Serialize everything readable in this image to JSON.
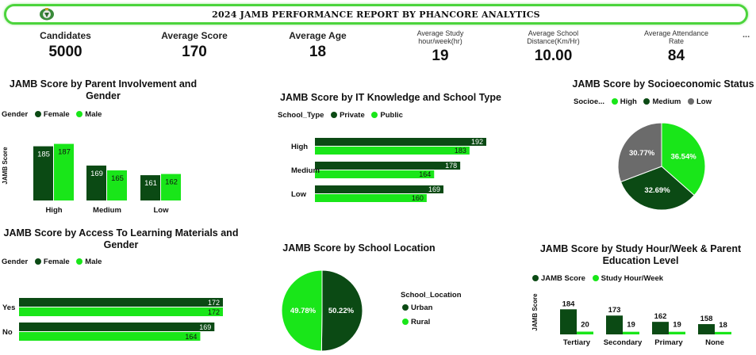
{
  "header": {
    "title": "2024 JAMB PERFORMANCE REPORT BY PHANCORE ANALYTICS"
  },
  "colors": {
    "dark": "#0b4a14",
    "light": "#19e619",
    "grey": "#6b6b6b",
    "accent": "#4cd43c"
  },
  "kpis": [
    {
      "label": "Candidates",
      "value": "5000"
    },
    {
      "label": "Average Score",
      "value": "170"
    },
    {
      "label": "Average Age",
      "value": "18"
    },
    {
      "label": "Average Study hour/week(hr)",
      "value": "19"
    },
    {
      "label": "Average School Distance(Km/Hr)",
      "value": "10.00"
    },
    {
      "label": "Average Attendance Rate",
      "value": "84"
    }
  ],
  "more_label": "...",
  "chart_data": [
    {
      "id": "parent",
      "type": "bar",
      "title": "JAMB Score by Parent Involvement and Gender",
      "legend_title": "Gender",
      "ylabel": "JAMB Score",
      "categories": [
        "High",
        "Medium",
        "Low"
      ],
      "series": [
        {
          "name": "Female",
          "values": [
            185,
            169,
            161
          ]
        },
        {
          "name": "Male",
          "values": [
            187,
            165,
            162
          ]
        }
      ]
    },
    {
      "id": "it",
      "type": "bar",
      "orientation": "horizontal",
      "title": "JAMB Score by IT Knowledge and School Type",
      "legend_title": "School_Type",
      "categories": [
        "High",
        "Medium",
        "Low"
      ],
      "series": [
        {
          "name": "Private",
          "values": [
            192,
            178,
            169
          ]
        },
        {
          "name": "Public",
          "values": [
            183,
            164,
            160
          ]
        }
      ]
    },
    {
      "id": "socio",
      "type": "pie",
      "title": "JAMB Score by Socioeconomic Status",
      "legend_title": "Socioe...",
      "slices": [
        {
          "name": "High",
          "label": "36.54%",
          "value": 36.54
        },
        {
          "name": "Medium",
          "label": "32.69%",
          "value": 32.69
        },
        {
          "name": "Low",
          "label": "30.77%",
          "value": 30.77
        }
      ]
    },
    {
      "id": "access",
      "type": "bar",
      "orientation": "horizontal",
      "title": "JAMB Score by Access To Learning Materials and Gender",
      "legend_title": "Gender",
      "categories": [
        "Yes",
        "No"
      ],
      "series": [
        {
          "name": "Female",
          "values": [
            172,
            169
          ]
        },
        {
          "name": "Male",
          "values": [
            172,
            164
          ]
        }
      ]
    },
    {
      "id": "location",
      "type": "pie",
      "title": "JAMB Score by School Location",
      "legend_title": "School_Location",
      "slices": [
        {
          "name": "Urban",
          "label": "50.22%",
          "value": 50.22
        },
        {
          "name": "Rural",
          "label": "49.78%",
          "value": 49.78
        }
      ]
    },
    {
      "id": "study",
      "type": "bar",
      "title": "JAMB Score by Study Hour/Week & Parent Education Level",
      "ylabel": "JAMB Score",
      "categories": [
        "Tertiary",
        "Secondary",
        "Primary",
        "None"
      ],
      "series": [
        {
          "name": "JAMB Score",
          "values": [
            184,
            173,
            162,
            158
          ]
        },
        {
          "name": "Study Hour/Week",
          "values": [
            20,
            19,
            19,
            18
          ]
        }
      ]
    }
  ]
}
